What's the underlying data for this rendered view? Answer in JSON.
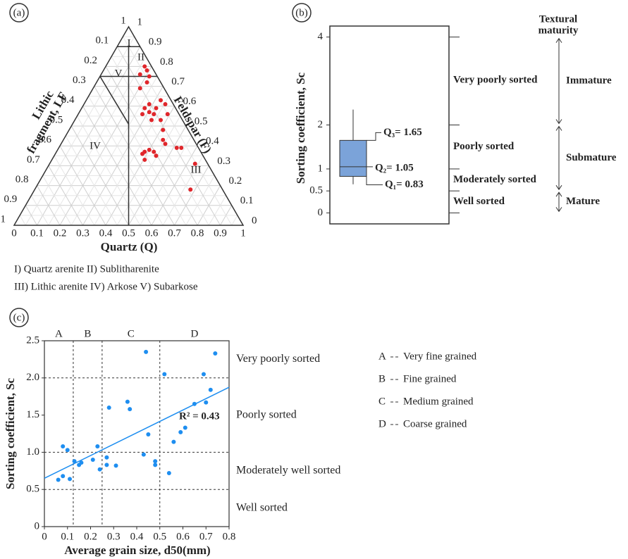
{
  "chart_data": [
    {
      "type": "ternary",
      "panel_label": "(a)",
      "left_label": [
        "Lithic",
        "fragment, LF"
      ],
      "right_label": "Feldspar (F)",
      "xlabel": "Quartz (Q)",
      "xlim": [
        0,
        1
      ],
      "ylim": [
        0,
        1
      ],
      "xticks": [
        0,
        0.1,
        0.2,
        0.3,
        0.4,
        0.5,
        0.6,
        0.7,
        0.8,
        0.9,
        1
      ],
      "left_ticks": [
        0.1,
        0.2,
        0.3,
        0.4,
        0.5,
        0.6,
        0.7,
        0.8,
        0.9,
        1
      ],
      "left_apex_label": "1",
      "right_ticks": [
        0,
        0.1,
        0.2,
        0.3,
        0.4,
        0.5,
        0.6,
        0.7,
        0.8,
        0.9,
        1
      ],
      "regions": [
        "I",
        "II",
        "III",
        "IV",
        "V"
      ],
      "legend": [
        "I) Quartz arenite II) Sublitharenite",
        "III) Lithic arenite IV) Arkose V) Subarkose"
      ],
      "color": "#e0262b",
      "x": [
        0.57,
        0.58,
        0.55,
        0.59,
        0.58,
        0.55,
        0.64,
        0.66,
        0.59,
        0.57,
        0.62,
        0.59,
        0.67,
        0.61,
        0.56,
        0.64,
        0.6,
        0.65,
        0.65,
        0.66,
        0.59,
        0.57,
        0.61,
        0.62,
        0.56,
        0.57,
        0.71,
        0.73,
        0.79,
        0.77
      ],
      "values": [
        0.8,
        0.78,
        0.76,
        0.75,
        0.72,
        0.69,
        0.63,
        0.61,
        0.61,
        0.59,
        0.59,
        0.57,
        0.56,
        0.56,
        0.56,
        0.53,
        0.53,
        0.48,
        0.43,
        0.41,
        0.38,
        0.37,
        0.37,
        0.35,
        0.36,
        0.33,
        0.39,
        0.39,
        0.31,
        0.18
      ]
    },
    {
      "type": "box",
      "panel_label": "(b)",
      "ylabel": "Sorting coefficient, Sc",
      "ylim": [
        -0.25,
        4.25
      ],
      "yticks": [
        0,
        0.5,
        1,
        2,
        4
      ],
      "whisker_low": 0.65,
      "q1": 0.83,
      "median": 1.05,
      "q3": 1.65,
      "whisker_high": 2.35,
      "value_labels": {
        "q1": "Q₁= 0.83",
        "median": "Q₂= 1.05",
        "q3": "Q₃= 1.65"
      },
      "color": "#7ba3d9",
      "sorting_classes": [
        "Well sorted",
        "Moderately sorted",
        "Poorly sorted",
        "Very poorly sorted"
      ],
      "maturity_title": [
        "Textural",
        "maturity"
      ],
      "maturity_classes": [
        {
          "name": "Immature",
          "range": [
            2,
            4
          ]
        },
        {
          "name": "Submature",
          "range": [
            0.5,
            2
          ]
        },
        {
          "name": "Mature",
          "range": [
            0,
            0.5
          ]
        }
      ]
    },
    {
      "type": "scatter",
      "panel_label": "(c)",
      "xlabel": "Average grain size, d50(mm)",
      "ylabel": "Sorting coefficient, Sc",
      "xlim": [
        0,
        0.8
      ],
      "xticks": [
        0,
        0.1,
        0.2,
        0.3,
        0.4,
        0.5,
        0.6,
        0.7,
        0.8
      ],
      "ylim": [
        0,
        2.5
      ],
      "yticks": [
        0,
        0.5,
        {
          "value": 1,
          "label": "1.0"
        },
        1.5,
        {
          "value": 2,
          "label": "2.0"
        },
        2.5
      ],
      "color": "#1e8ef0",
      "x": [
        0.06,
        0.08,
        0.08,
        0.1,
        0.11,
        0.13,
        0.15,
        0.16,
        0.21,
        0.23,
        0.24,
        0.27,
        0.27,
        0.28,
        0.31,
        0.36,
        0.37,
        0.43,
        0.44,
        0.45,
        0.48,
        0.48,
        0.52,
        0.54,
        0.56,
        0.59,
        0.61,
        0.65,
        0.69,
        0.7,
        0.72,
        0.74
      ],
      "values": [
        0.63,
        0.68,
        1.08,
        1.03,
        0.64,
        0.88,
        0.83,
        0.86,
        0.9,
        1.08,
        0.77,
        0.93,
        0.83,
        1.6,
        0.82,
        1.68,
        1.58,
        0.97,
        2.35,
        1.24,
        0.88,
        0.83,
        2.05,
        0.72,
        1.14,
        1.27,
        1.33,
        1.65,
        2.05,
        1.67,
        1.84,
        2.33
      ],
      "trend": {
        "intercept": 0.65,
        "slope": 1.53,
        "color": "#1e8ef0"
      },
      "r2_label": "R² = 0.43",
      "r2": 0.43,
      "grain_classes": [
        {
          "key": "A",
          "name": "Very fine grained",
          "range": [
            0,
            0.125
          ]
        },
        {
          "key": "B",
          "name": "Fine grained",
          "range": [
            0.125,
            0.25
          ]
        },
        {
          "key": "C",
          "name": "Medium grained",
          "range": [
            0.25,
            0.5
          ]
        },
        {
          "key": "D",
          "name": "Coarse grained",
          "range": [
            0.5,
            0.8
          ]
        }
      ],
      "sort_classes": [
        {
          "name": "Well sorted",
          "range": [
            0,
            0.5
          ]
        },
        {
          "name": "Moderately well sorted",
          "range": [
            0.5,
            1
          ]
        },
        {
          "name": "Poorly sorted",
          "range": [
            1,
            2
          ]
        },
        {
          "name": "Very poorly sorted",
          "range": [
            2,
            2.5
          ]
        }
      ]
    }
  ]
}
